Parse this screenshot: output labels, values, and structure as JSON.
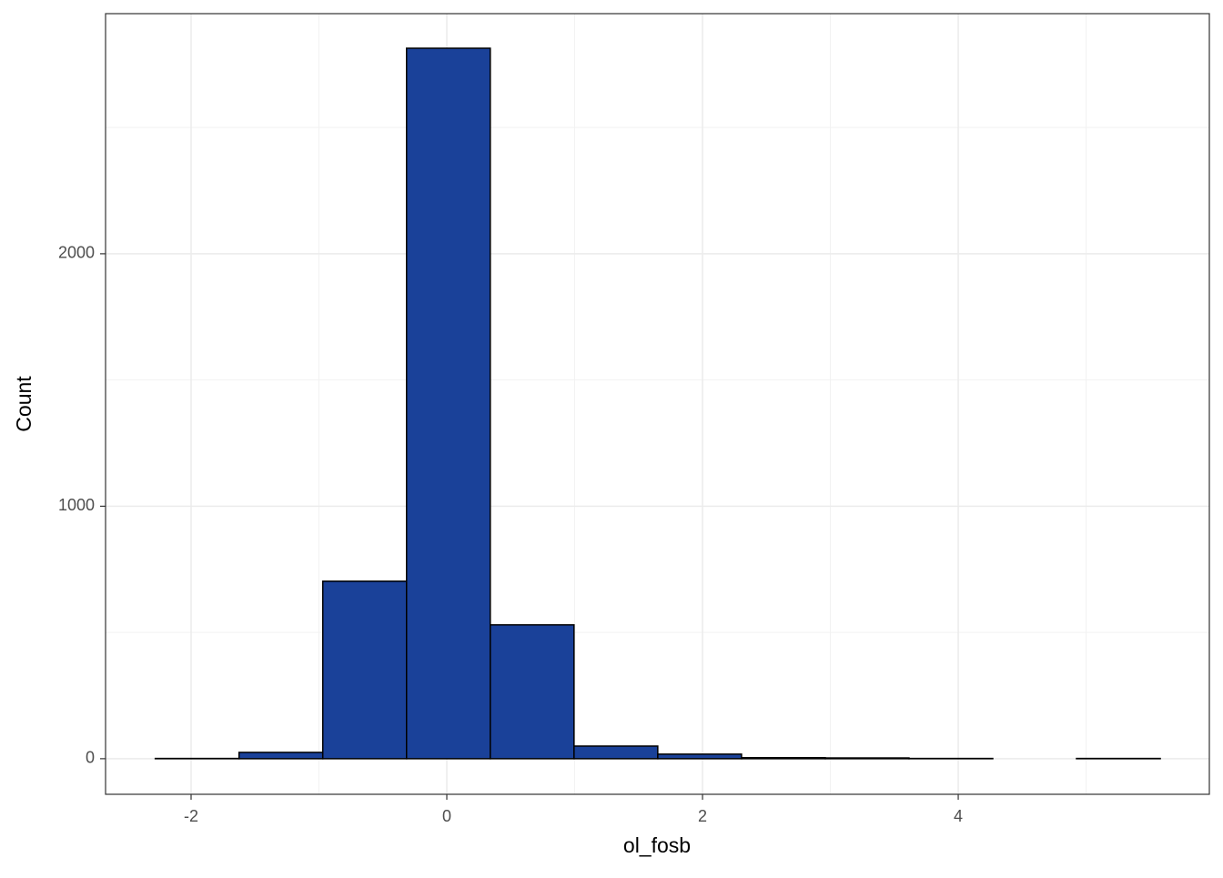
{
  "chart_data": {
    "type": "histogram",
    "x_label": "ol_fosb",
    "y_label": "Count",
    "bins": [
      -2.28,
      -1.625,
      -0.97,
      -0.315,
      0.34,
      0.995,
      1.65,
      2.305,
      2.96,
      3.615,
      4.27,
      4.925,
      5.58
    ],
    "values": [
      1,
      25,
      703,
      2814,
      530,
      50,
      18,
      4,
      3,
      1,
      0,
      1
    ],
    "color": "#1a4199",
    "xlim": [
      -2.669,
      5.964
    ],
    "ylim": [
      -141,
      2951
    ],
    "xticks": [
      -2,
      0,
      2,
      4
    ],
    "yticks": [
      0,
      1000,
      2000
    ],
    "grid": true
  }
}
